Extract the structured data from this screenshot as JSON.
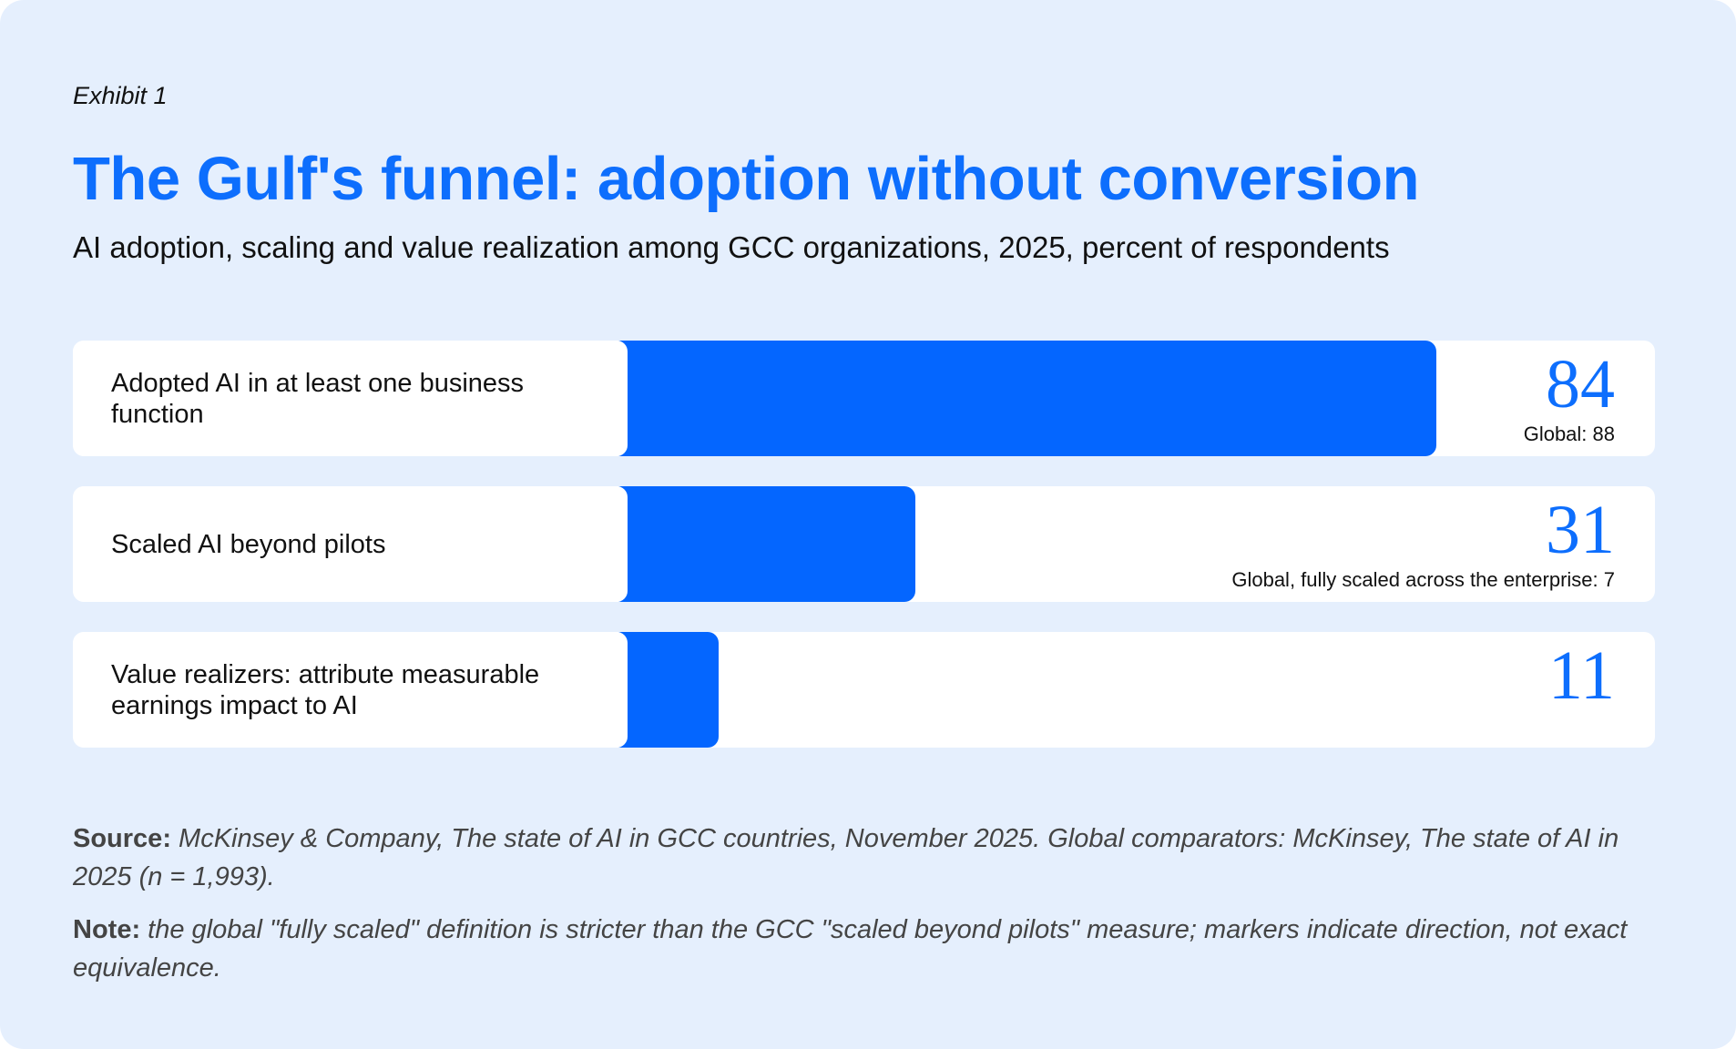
{
  "exhibit": "Exhibit 1",
  "title": "The Gulf's funnel: adoption without conversion",
  "subtitle": "AI adoption, scaling and value realization among GCC organizations, 2025, percent of respondents",
  "colors": {
    "background": "#e5effd",
    "bar": "#0466ff",
    "accent": "#0d6efd"
  },
  "chart_data": {
    "type": "bar",
    "orientation": "horizontal",
    "categories": [
      "Adopted AI in at least  one business function",
      "Scaled AI beyond pilots",
      "Value realizers: attribute measurable earnings impact to AI"
    ],
    "values": [
      84,
      31,
      11
    ],
    "value_labels": [
      "84",
      "31",
      "11"
    ],
    "annotations": [
      "Global: 88",
      "Global, fully scaled across the enterprise: 7",
      ""
    ],
    "xlim": [
      0,
      100
    ]
  },
  "footer": {
    "source_label": "Source:",
    "source_text": "McKinsey & Company, The state of AI in GCC countries, November 2025. Global comparators: McKinsey, The state of AI in 2025 (n = 1,993).",
    "note_label": "Note:",
    "note_text": "the global \"fully scaled\" definition is stricter than the GCC \"scaled beyond pilots\" measure; markers indicate direction, not exact equivalence."
  }
}
